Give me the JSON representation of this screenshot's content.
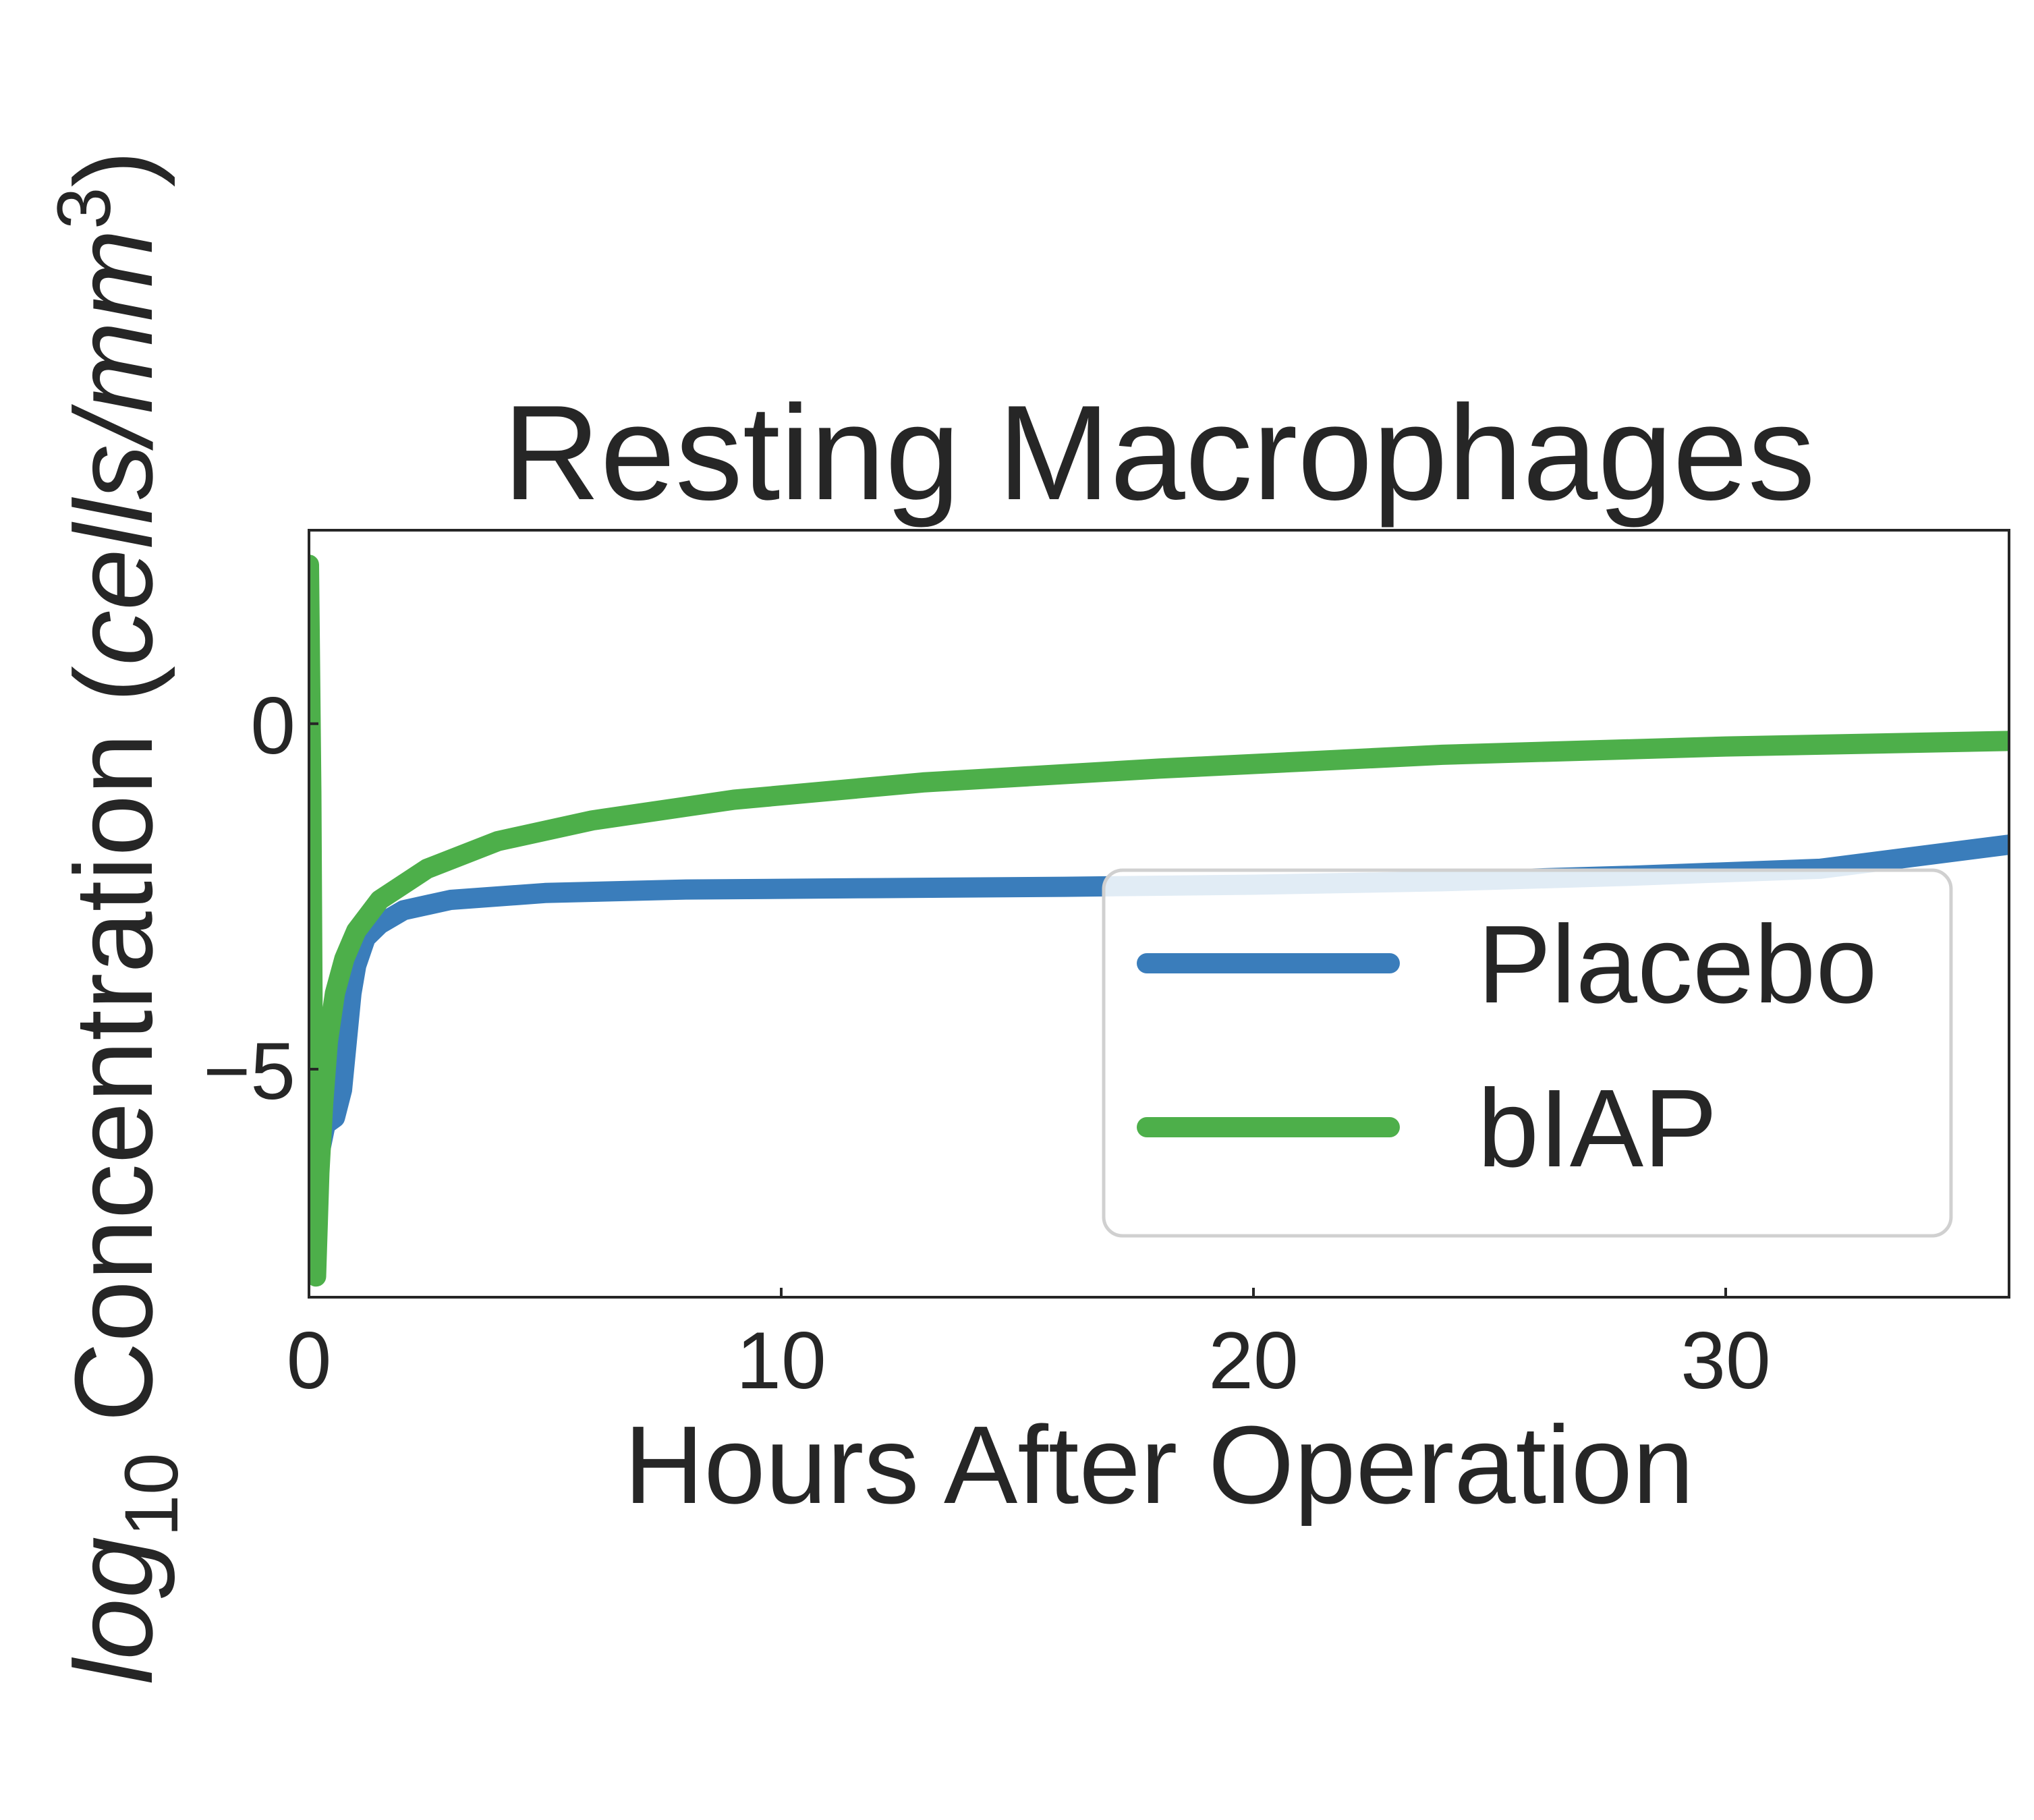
{
  "chart_data": {
    "type": "line",
    "title": "Resting Macrophages",
    "xlabel": "Hours After Operation",
    "ylabel": "log10 Concentration (cells/mm3)",
    "ylabel_parts": {
      "log": "log",
      "sub": "10",
      "mid": " Concentration (",
      "unit": "cells/mm",
      "sup": "3",
      "close": ")"
    },
    "xlim": [
      0,
      36
    ],
    "ylim": [
      -8.3,
      2.8
    ],
    "x_ticks": [
      0,
      10,
      20,
      30
    ],
    "x_tick_labels": [
      "0",
      "10",
      "20",
      "30"
    ],
    "y_ticks": [
      0,
      -5
    ],
    "y_tick_labels": [
      "0",
      "−5"
    ],
    "grid": false,
    "legend_position": "lower right",
    "series": [
      {
        "name": "Placebo",
        "color": "#3a7dbb",
        "x": [
          0,
          0.1,
          0.2,
          0.35,
          0.55,
          0.7,
          0.8,
          0.9,
          1.0,
          1.2,
          1.5,
          2,
          3,
          5,
          8,
          12,
          16,
          20,
          24,
          28,
          32,
          36
        ],
        "y": [
          -7.2,
          -7.6,
          -6.3,
          -5.8,
          -5.7,
          -5.3,
          -4.6,
          -3.9,
          -3.5,
          -3.1,
          -2.9,
          -2.7,
          -2.55,
          -2.45,
          -2.4,
          -2.38,
          -2.36,
          -2.33,
          -2.28,
          -2.2,
          -2.1,
          -1.75
        ]
      },
      {
        "name": "bIAP",
        "color": "#4daf4a",
        "x": [
          0,
          0.05,
          0.1,
          0.15,
          0.22,
          0.3,
          0.4,
          0.55,
          0.75,
          1.0,
          1.5,
          2.5,
          4,
          6,
          9,
          13,
          18,
          24,
          30,
          36
        ],
        "y": [
          2.3,
          -1.0,
          -7.0,
          -8.0,
          -6.5,
          -5.5,
          -4.6,
          -3.9,
          -3.4,
          -3.0,
          -2.55,
          -2.1,
          -1.7,
          -1.4,
          -1.1,
          -0.85,
          -0.65,
          -0.45,
          -0.33,
          -0.25
        ]
      }
    ]
  }
}
